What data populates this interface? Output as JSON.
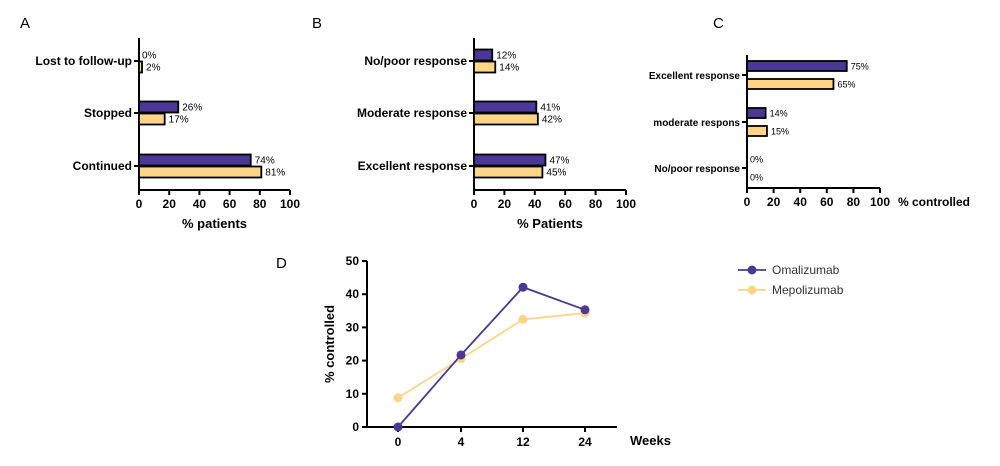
{
  "colors": {
    "omalizumab": "#4b3796",
    "mepolizumab": "#fdd584",
    "axis": "#000000"
  },
  "chart_data": [
    {
      "panel": "A",
      "type": "bar",
      "orientation": "horizontal",
      "categories": [
        "Lost to follow-up",
        "Stopped",
        "Continued"
      ],
      "series": [
        {
          "name": "Omalizumab",
          "values": [
            0,
            26,
            74
          ],
          "labels": [
            "0%",
            "26%",
            "74%"
          ]
        },
        {
          "name": "Mepolizumab",
          "values": [
            2,
            17,
            81
          ],
          "labels": [
            "2%",
            "17%",
            "81%"
          ]
        }
      ],
      "xlabel": "% patients",
      "xlim": [
        0,
        100
      ],
      "xticks": [
        "0",
        "20",
        "40",
        "60",
        "80",
        "100"
      ],
      "grid": false
    },
    {
      "panel": "B",
      "type": "bar",
      "orientation": "horizontal",
      "categories": [
        "No/poor response",
        "Moderate response",
        "Excellent response"
      ],
      "series": [
        {
          "name": "Omalizumab",
          "values": [
            12,
            41,
            47
          ],
          "labels": [
            "12%",
            "41%",
            "47%"
          ]
        },
        {
          "name": "Mepolizumab",
          "values": [
            14,
            42,
            45
          ],
          "labels": [
            "14%",
            "42%",
            "45%"
          ]
        }
      ],
      "xlabel": "% Patients",
      "xlim": [
        0,
        100
      ],
      "xticks": [
        "0",
        "20",
        "40",
        "60",
        "80",
        "100"
      ],
      "grid": false
    },
    {
      "panel": "C",
      "type": "bar",
      "orientation": "horizontal",
      "categories": [
        "Excellent response",
        "moderate respons",
        "No/poor response"
      ],
      "series": [
        {
          "name": "Omalizumab",
          "values": [
            75,
            14,
            0
          ],
          "labels": [
            "75%",
            "14%",
            "0%"
          ]
        },
        {
          "name": "Mepolizumab",
          "values": [
            65,
            15,
            0
          ],
          "labels": [
            "65%",
            "15%",
            "0%"
          ]
        }
      ],
      "xlabel": "% controlled",
      "xlim": [
        0,
        100
      ],
      "xticks": [
        "0",
        "20",
        "40",
        "60",
        "80",
        "100"
      ],
      "grid": false
    },
    {
      "panel": "D",
      "type": "line",
      "x": [
        "0",
        "4",
        "12",
        "24"
      ],
      "series": [
        {
          "name": "Omalizumab",
          "values": [
            0,
            21.7,
            42.1,
            35.3
          ]
        },
        {
          "name": "Mepolizumab",
          "values": [
            8.8,
            20.6,
            32.4,
            34.3
          ]
        }
      ],
      "xlabel": "Weeks",
      "ylabel": "% controlled",
      "ylim": [
        0,
        50
      ],
      "yticks": [
        "0",
        "10",
        "20",
        "30",
        "40",
        "50"
      ],
      "legend": "right",
      "grid": false
    }
  ]
}
